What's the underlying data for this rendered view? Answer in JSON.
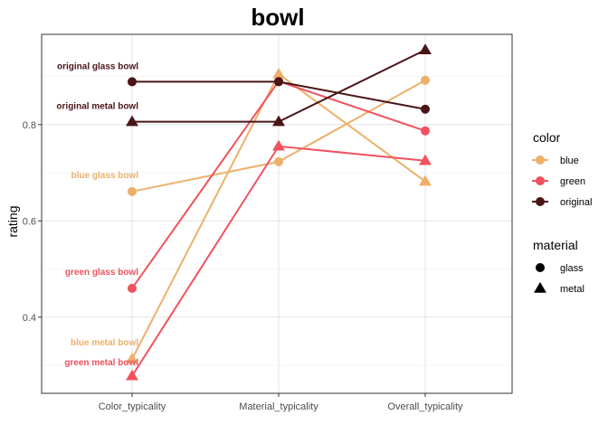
{
  "chart_data": {
    "type": "line",
    "title": "bowl",
    "xlabel": "",
    "ylabel": "rating",
    "categories": [
      "Color_typicality",
      "Material_typicality",
      "Overall_typicality"
    ],
    "ylim": [
      0.25,
      1.0
    ],
    "yticks": [
      0.4,
      0.6,
      0.8
    ],
    "ytick_labels": [
      "0.4",
      "0.6",
      "0.8"
    ],
    "grid": true,
    "legend_position": "right",
    "colors": {
      "blue": "#EDB06A",
      "green": "#F1525E",
      "original": "#4A1517"
    },
    "series": [
      {
        "color": "blue",
        "material": "glass",
        "values": [
          0.661,
          0.723,
          0.892
        ]
      },
      {
        "color": "blue",
        "material": "metal",
        "values": [
          0.313,
          0.905,
          0.682
        ]
      },
      {
        "color": "green",
        "material": "glass",
        "values": [
          0.46,
          0.89,
          0.787
        ]
      },
      {
        "color": "green",
        "material": "metal",
        "values": [
          0.278,
          0.755,
          0.725
        ]
      },
      {
        "color": "original",
        "material": "glass",
        "values": [
          0.889,
          0.889,
          0.832
        ]
      },
      {
        "color": "original",
        "material": "metal",
        "values": [
          0.806,
          0.806,
          0.955
        ]
      }
    ],
    "annotations": [
      {
        "text": "original glass bowl",
        "color": "original",
        "y": 0.889
      },
      {
        "text": "original metal bowl",
        "color": "original",
        "y": 0.806
      },
      {
        "text": "blue glass bowl",
        "color": "blue",
        "y": 0.661
      },
      {
        "text": "green glass bowl",
        "color": "green",
        "y": 0.46
      },
      {
        "text": "blue metal bowl",
        "color": "blue",
        "y": 0.313
      },
      {
        "text": "green metal bowl",
        "color": "green",
        "y": 0.278
      }
    ],
    "legends": [
      {
        "title": "color",
        "items": [
          "blue",
          "green",
          "original"
        ]
      },
      {
        "title": "material",
        "items": [
          "glass",
          "metal"
        ],
        "shapes": [
          "circle",
          "triangle"
        ]
      }
    ]
  }
}
